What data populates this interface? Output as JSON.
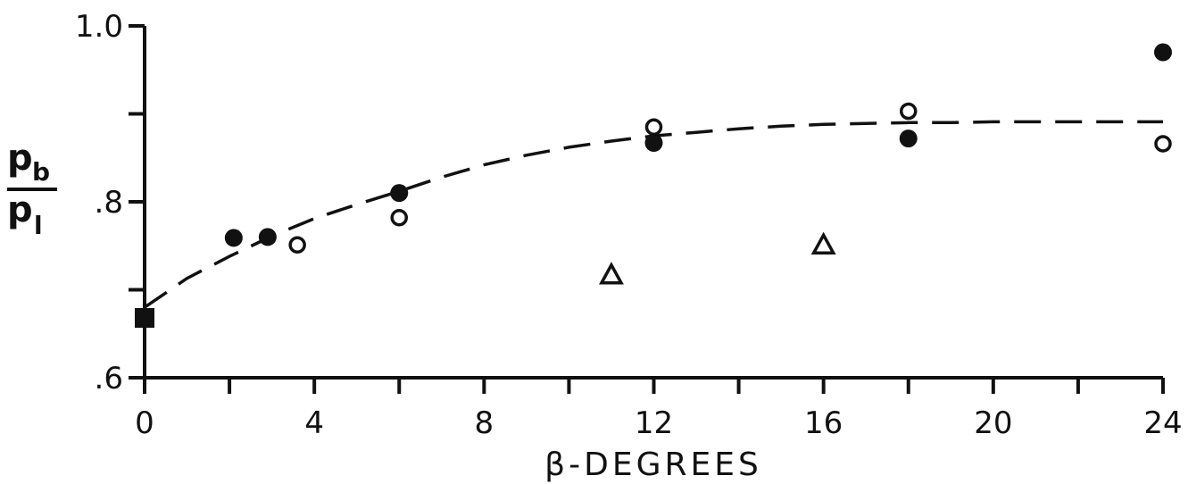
{
  "chart_data": {
    "type": "scatter",
    "title": "",
    "xlabel": "β-DEGREES",
    "ylabel": {
      "numerator": "p",
      "numerator_sub": "b",
      "denominator": "p",
      "denominator_sub": "l"
    },
    "xlim": [
      0,
      24
    ],
    "ylim": [
      0.6,
      1.0
    ],
    "x_major_ticks": [
      0,
      4,
      8,
      12,
      16,
      20,
      24
    ],
    "x_minor_ticks": [
      2,
      6,
      10,
      14,
      18,
      22
    ],
    "x_tick_labels": [
      "0",
      "4",
      "8",
      "12",
      "16",
      "20",
      "24"
    ],
    "y_major_ticks": [
      0.6,
      0.7,
      0.8,
      0.9,
      1.0
    ],
    "y_tick_labels": [
      {
        "value": 0.6,
        "label": ".6"
      },
      {
        "value": 0.8,
        "label": ".8"
      },
      {
        "value": 1.0,
        "label": "1.0"
      }
    ],
    "grid": false,
    "series": [
      {
        "marker": "filled-circle",
        "x": [
          2.1,
          2.9,
          6.0,
          12.0,
          18.0,
          24.0
        ],
        "y": [
          0.759,
          0.76,
          0.81,
          0.867,
          0.872,
          0.97
        ]
      },
      {
        "marker": "open-circle",
        "x": [
          3.6,
          6.0,
          12.0,
          18.0,
          24.0
        ],
        "y": [
          0.751,
          0.782,
          0.885,
          0.903,
          0.866
        ]
      },
      {
        "marker": "open-triangle",
        "x": [
          11.0,
          16.0
        ],
        "y": [
          0.718,
          0.752
        ]
      },
      {
        "marker": "filled-square",
        "x": [
          0.0
        ],
        "y": [
          0.668
        ]
      }
    ],
    "fit_curve": {
      "style": "dashed",
      "x": [
        0,
        1,
        2,
        3,
        4,
        5,
        6,
        7,
        8,
        9,
        10,
        11,
        12,
        13,
        14,
        15,
        16,
        17,
        18,
        19,
        20,
        21,
        22,
        23,
        24
      ],
      "y": [
        0.68,
        0.713,
        0.738,
        0.761,
        0.781,
        0.797,
        0.812,
        0.828,
        0.842,
        0.853,
        0.862,
        0.869,
        0.875,
        0.879,
        0.883,
        0.886,
        0.888,
        0.889,
        0.89,
        0.89,
        0.891,
        0.891,
        0.891,
        0.891,
        0.891
      ]
    },
    "colors": {
      "ink": "#111111",
      "background": "#ffffff"
    }
  }
}
